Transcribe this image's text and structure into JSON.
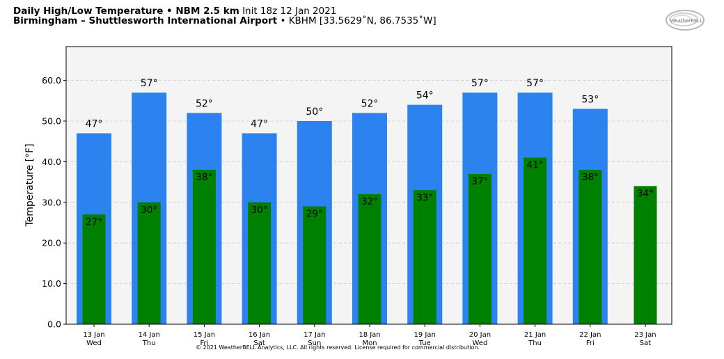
{
  "header": {
    "title_bold": "Daily High/Low Temperature • NBM 2.5 km",
    "init": "Init 18z 12 Jan 2021",
    "location_bold": "Birmingham – Shuttlesworth International Airport",
    "station": "• KBHM [33.5629˚N, 86.7535˚W]"
  },
  "logo": {
    "text": "WeatherBELL"
  },
  "copyright": "© 2021 WeatherBELL Analytics, LLC. All rights reserved. License required for commercial distribution.",
  "colors": {
    "high": "#2c83ef",
    "low": "#008000",
    "plot_bg": "#f4f4f4"
  },
  "chart_data": {
    "type": "bar",
    "ylabel": "Temperature [°F]",
    "ylim": [
      0,
      68
    ],
    "yticks": [
      "0.0",
      "10.0",
      "20.0",
      "30.0",
      "40.0",
      "50.0",
      "60.0"
    ],
    "grid": true,
    "categories": [
      {
        "date": "13 Jan",
        "day": "Wed"
      },
      {
        "date": "14 Jan",
        "day": "Thu"
      },
      {
        "date": "15 Jan",
        "day": "Fri"
      },
      {
        "date": "16 Jan",
        "day": "Sat"
      },
      {
        "date": "17 Jan",
        "day": "Sun"
      },
      {
        "date": "18 Jan",
        "day": "Mon"
      },
      {
        "date": "19 Jan",
        "day": "Tue"
      },
      {
        "date": "20 Jan",
        "day": "Wed"
      },
      {
        "date": "21 Jan",
        "day": "Thu"
      },
      {
        "date": "22 Jan",
        "day": "Fri"
      },
      {
        "date": "23 Jan",
        "day": "Sat"
      }
    ],
    "series": [
      {
        "key": "high",
        "values": [
          47,
          57,
          52,
          47,
          50,
          52,
          54,
          57,
          57,
          53,
          null
        ],
        "labels": [
          "47°",
          "57°",
          "52°",
          "47°",
          "50°",
          "52°",
          "54°",
          "57°",
          "57°",
          "53°",
          ""
        ]
      },
      {
        "key": "low",
        "values": [
          27,
          30,
          38,
          30,
          29,
          32,
          33,
          37,
          41,
          38,
          34
        ],
        "labels": [
          "27°",
          "30°",
          "38°",
          "30°",
          "29°",
          "32°",
          "33°",
          "37°",
          "41°",
          "38°",
          "34°"
        ]
      }
    ]
  }
}
